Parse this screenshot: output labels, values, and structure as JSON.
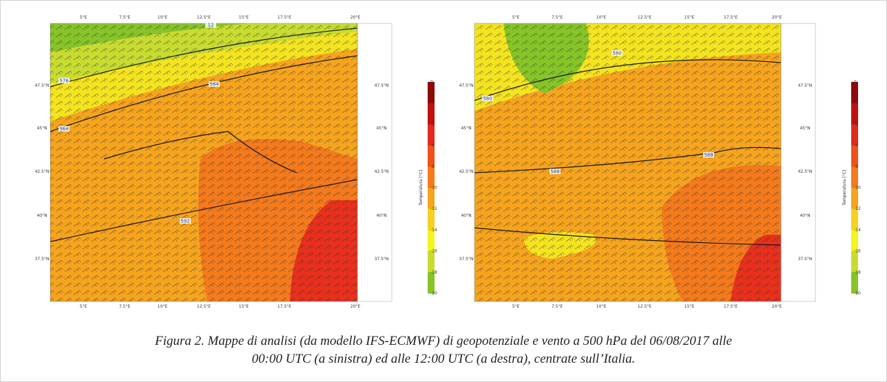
{
  "maps": [
    {
      "lon_labels": [
        "5°E",
        "7.5°E",
        "10°E",
        "12.5°E",
        "15°E",
        "17.5°E",
        "20°E"
      ],
      "lat_labels": [
        "47.5°N",
        "45°N",
        "42.5°N",
        "40°N",
        "37.5°N"
      ],
      "contour_labels": [
        "576",
        "584",
        "564",
        "592",
        "12"
      ],
      "colorbar": {
        "label": "Temperatura [°C]",
        "ticks": [
          0,
          -2,
          -4,
          -6,
          -8,
          -10,
          -12,
          -14,
          -16,
          -18,
          -20
        ],
        "colors": [
          "#8c0a0a",
          "#c01010",
          "#e02a1a",
          "#f0501a",
          "#f47a1c",
          "#f6a41e",
          "#f8d020",
          "#f4f41e",
          "#c8dc30",
          "#86c428"
        ]
      }
    },
    {
      "lon_labels": [
        "5°E",
        "7.5°E",
        "10°E",
        "12.5°E",
        "15°E",
        "17.5°E",
        "20°E"
      ],
      "lat_labels": [
        "47.5°N",
        "45°N",
        "42.5°N",
        "40°N",
        "37.5°N"
      ],
      "contour_labels": [
        "580",
        "580",
        "588",
        "588"
      ],
      "colorbar": {
        "label": "Temperatura [°C]",
        "ticks": [
          0,
          -2,
          -4,
          -6,
          -8,
          -10,
          -12,
          -14,
          -16,
          -18,
          -20
        ],
        "colors": [
          "#8c0a0a",
          "#c01010",
          "#e02a1a",
          "#f0501a",
          "#f47a1c",
          "#f6a41e",
          "#f8d020",
          "#f4f41e",
          "#c8dc30",
          "#86c428"
        ]
      }
    }
  ],
  "caption": [
    "Figura 2. Mappe di analisi (da modello IFS-ECMWF) di geopotenziale e vento a 500 hPa del 06/08/2017 alle",
    "00:00 UTC (a sinistra) ed alle 12:00 UTC (a destra), centrate sull’Italia."
  ]
}
